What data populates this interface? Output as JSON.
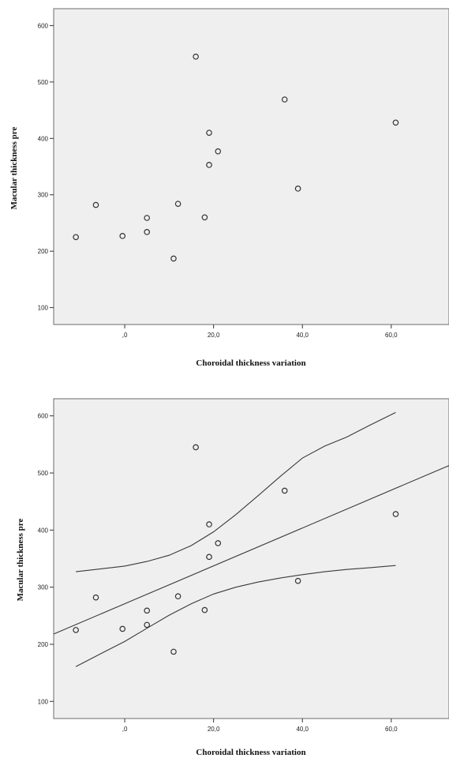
{
  "chart_data": [
    {
      "type": "scatter",
      "xlabel": "Choroidal thickness variation",
      "ylabel": "Macular thickness pre",
      "xlim": [
        -16,
        73
      ],
      "ylim": [
        70,
        630
      ],
      "x_ticks": [
        ",0",
        "20,0",
        "40,0",
        "60,0"
      ],
      "x_tick_values": [
        0,
        20,
        40,
        60
      ],
      "y_ticks": [
        "100",
        "200",
        "300",
        "400",
        "500",
        "600"
      ],
      "y_tick_values": [
        100,
        200,
        300,
        400,
        500,
        600
      ],
      "points": [
        {
          "x": -11,
          "y": 225
        },
        {
          "x": -6.5,
          "y": 282
        },
        {
          "x": -0.5,
          "y": 227
        },
        {
          "x": 5,
          "y": 259
        },
        {
          "x": 5,
          "y": 234
        },
        {
          "x": 11,
          "y": 187
        },
        {
          "x": 12,
          "y": 284
        },
        {
          "x": 16,
          "y": 545
        },
        {
          "x": 18,
          "y": 260
        },
        {
          "x": 19,
          "y": 410
        },
        {
          "x": 19,
          "y": 353
        },
        {
          "x": 21,
          "y": 377
        },
        {
          "x": 36,
          "y": 469
        },
        {
          "x": 39,
          "y": 311
        },
        {
          "x": 61,
          "y": 428
        }
      ],
      "grid": false
    },
    {
      "type": "scatter",
      "xlabel": "Choroidal thickness variation",
      "ylabel": "Macular thickness pre",
      "xlim": [
        -16,
        73
      ],
      "ylim": [
        70,
        630
      ],
      "x_ticks": [
        ",0",
        "20,0",
        "40,0",
        "60,0"
      ],
      "x_tick_values": [
        0,
        20,
        40,
        60
      ],
      "y_ticks": [
        "100",
        "200",
        "300",
        "400",
        "500",
        "600"
      ],
      "y_tick_values": [
        100,
        200,
        300,
        400,
        500,
        600
      ],
      "points": [
        {
          "x": -11,
          "y": 225
        },
        {
          "x": -6.5,
          "y": 282
        },
        {
          "x": -0.5,
          "y": 227
        },
        {
          "x": 5,
          "y": 259
        },
        {
          "x": 5,
          "y": 234
        },
        {
          "x": 11,
          "y": 187
        },
        {
          "x": 12,
          "y": 284
        },
        {
          "x": 16,
          "y": 545
        },
        {
          "x": 18,
          "y": 260
        },
        {
          "x": 19,
          "y": 410
        },
        {
          "x": 19,
          "y": 353
        },
        {
          "x": 21,
          "y": 377
        },
        {
          "x": 36,
          "y": 469
        },
        {
          "x": 39,
          "y": 311
        },
        {
          "x": 61,
          "y": 428
        }
      ],
      "fit_line": [
        {
          "x": -16,
          "y": 218
        },
        {
          "x": 73,
          "y": 513
        }
      ],
      "ci_upper": [
        {
          "x": -11,
          "y": 327
        },
        {
          "x": 0,
          "y": 337
        },
        {
          "x": 5,
          "y": 345
        },
        {
          "x": 10,
          "y": 356
        },
        {
          "x": 15,
          "y": 373
        },
        {
          "x": 20,
          "y": 397
        },
        {
          "x": 25,
          "y": 427
        },
        {
          "x": 30,
          "y": 460
        },
        {
          "x": 35,
          "y": 494
        },
        {
          "x": 40,
          "y": 526
        },
        {
          "x": 45,
          "y": 547
        },
        {
          "x": 50,
          "y": 563
        },
        {
          "x": 55,
          "y": 583
        },
        {
          "x": 61,
          "y": 606
        }
      ],
      "ci_lower": [
        {
          "x": -11,
          "y": 161
        },
        {
          "x": -5,
          "y": 185
        },
        {
          "x": 0,
          "y": 205
        },
        {
          "x": 5,
          "y": 228
        },
        {
          "x": 10,
          "y": 251
        },
        {
          "x": 15,
          "y": 271
        },
        {
          "x": 20,
          "y": 288
        },
        {
          "x": 25,
          "y": 300
        },
        {
          "x": 30,
          "y": 309
        },
        {
          "x": 35,
          "y": 316
        },
        {
          "x": 40,
          "y": 322
        },
        {
          "x": 45,
          "y": 327
        },
        {
          "x": 50,
          "y": 331
        },
        {
          "x": 55,
          "y": 334
        },
        {
          "x": 61,
          "y": 338
        }
      ],
      "grid": false
    }
  ]
}
